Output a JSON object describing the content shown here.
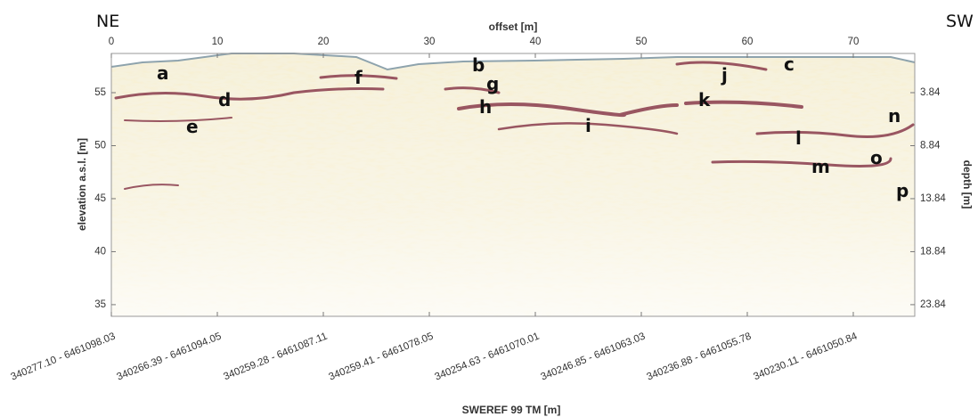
{
  "chart_data": {
    "type": "radargram",
    "corner_labels": [
      "NE",
      "SW"
    ],
    "x_label": "offset [m]",
    "y_label": "elevation a.s.l. [m]",
    "y2_label": "depth [m]",
    "x2_label": "SWEREF 99 TM [m]",
    "xlim": [
      0,
      75.8
    ],
    "xticks": [
      0,
      10,
      20,
      30,
      40,
      50,
      60,
      70
    ],
    "ylim": [
      33.9,
      58.7
    ],
    "yticks": [
      35,
      40,
      45,
      50,
      55
    ],
    "y2lim": [
      24.94,
      0.14
    ],
    "y2ticks": [
      3.84,
      8.84,
      13.84,
      18.84,
      23.84
    ],
    "x2ticks": [
      {
        "value": 0,
        "label": "340277.10 - 6461098.03"
      },
      {
        "value": 10,
        "label": "340266.39 - 6461094.05"
      },
      {
        "value": 20,
        "label": "340259.28 - 6461087.11"
      },
      {
        "value": 30,
        "label": "340259.41 - 6461078.05"
      },
      {
        "value": 40,
        "label": "340254.63 - 6461070.01"
      },
      {
        "value": 50,
        "label": "340246.85 - 6461063.03"
      },
      {
        "value": 60,
        "label": "340236.88 - 6461055.78"
      },
      {
        "value": 70,
        "label": "340230.11 - 6461050.84"
      }
    ],
    "annotations": [
      "a",
      "b",
      "c",
      "d",
      "e",
      "f",
      "g",
      "h",
      "i",
      "j",
      "k",
      "l",
      "m",
      "n",
      "o",
      "p"
    ]
  }
}
